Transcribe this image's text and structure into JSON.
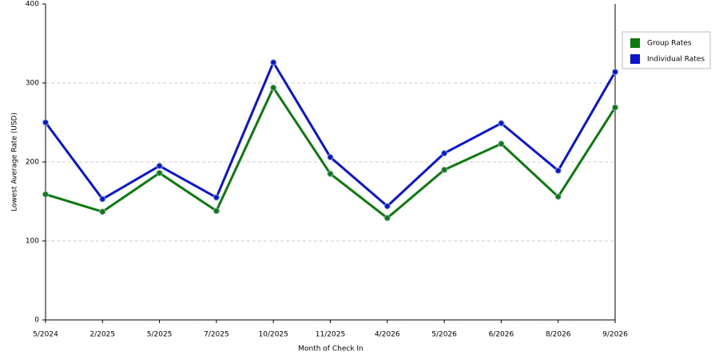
{
  "chart_data": {
    "type": "line",
    "x_label": "Month of Check In",
    "y_label": "Lowest Average Rate (USD)",
    "categories": [
      "5/2024",
      "2/2025",
      "5/2025",
      "7/2025",
      "10/2025",
      "11/2025",
      "4/2026",
      "5/2026",
      "6/2026",
      "8/2026",
      "9/2026"
    ],
    "series": [
      {
        "name": "Group Rates",
        "color": "#0c7a0c",
        "values": [
          159,
          137,
          186,
          138,
          294,
          185,
          129,
          190,
          223,
          156,
          269
        ]
      },
      {
        "name": "Individual Rates",
        "color": "#0a14d0",
        "values": [
          250,
          153,
          195,
          155,
          326,
          206,
          144,
          211,
          249,
          189,
          314
        ]
      }
    ],
    "ylim": [
      0,
      400
    ],
    "yticks": [
      0,
      100,
      200,
      300,
      400
    ],
    "grid": true
  }
}
